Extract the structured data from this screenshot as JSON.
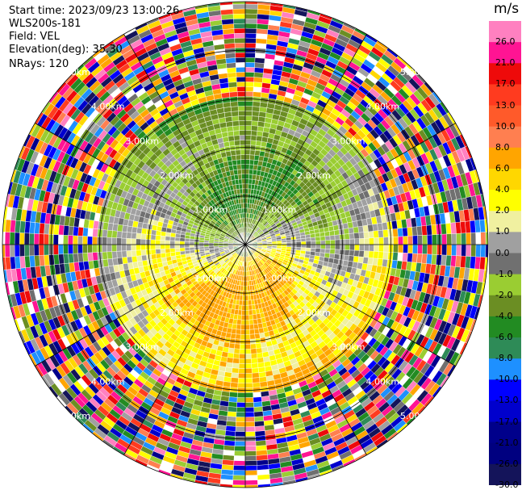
{
  "header": {
    "start_time": "Start time: 2023/09/23 13:00:26",
    "instrument": "WLS200s-181",
    "field": "Field: VEL",
    "elevation": "Elevation(deg): 35.30",
    "nrays": "NRays: 120"
  },
  "colorbar": {
    "unit": "m/s",
    "ticks": [
      "26.0",
      "21.0",
      "17.0",
      "13.0",
      "10.0",
      "8.0",
      "6.0",
      "4.0",
      "2.0",
      "1.0",
      "0.0",
      "-1.0",
      "-2.0",
      "-4.0",
      "-6.0",
      "-8.0",
      "-10.0",
      "-13.0",
      "-17.0",
      "-21.0",
      "-26.0",
      "-30.0"
    ],
    "colors": [
      "#ff80c0",
      "#ff1493",
      "#ee0a0a",
      "#ff3b1f",
      "#ff5a2a",
      "#ff7f50",
      "#ffa500",
      "#ffd700",
      "#ffff00",
      "#f0f0a0",
      "#a0a0a0",
      "#707070",
      "#9acd32",
      "#6b8e23",
      "#228b22",
      "#2e8b57",
      "#1e90ff",
      "#0000ff",
      "#0000cd",
      "#00008b",
      "#000080",
      "#14145a"
    ]
  },
  "chart_data": {
    "type": "heatmap",
    "title": "",
    "field": "VEL",
    "units": "m/s",
    "n_rays": 120,
    "range_rings_km": [
      1.0,
      2.0,
      3.0,
      4.0,
      5.0
    ],
    "range_ring_labels": [
      "1.00km",
      "2.00km",
      "3.00km",
      "4.00km",
      "5.00km"
    ],
    "radial_lines_deg": [
      0,
      30,
      60,
      90,
      120,
      150,
      180,
      210,
      240,
      270,
      300,
      330
    ],
    "max_range_km": 5.0,
    "colorscale_ms": [
      -30.0,
      -26.0,
      -21.0,
      -17.0,
      -13.0,
      -10.0,
      -8.0,
      -6.0,
      -4.0,
      -2.0,
      -1.0,
      0.0,
      1.0,
      2.0,
      4.0,
      6.0,
      8.0,
      10.0,
      13.0,
      17.0,
      21.0,
      26.0
    ]
  }
}
